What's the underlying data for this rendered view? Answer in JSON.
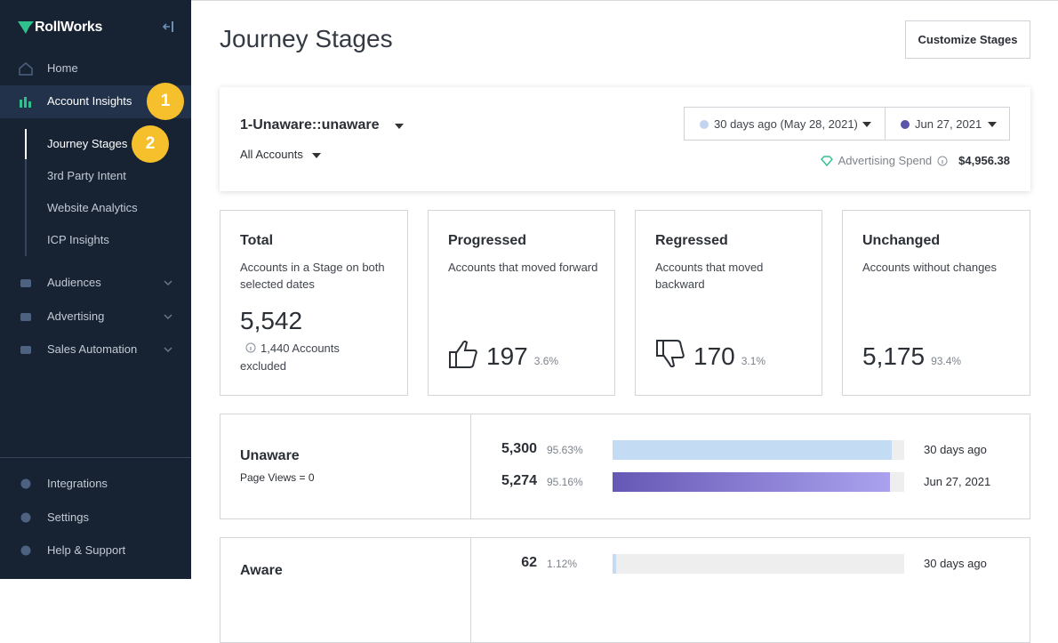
{
  "sidebar": {
    "brand": "RollWorks",
    "nav": [
      {
        "label": "Home"
      },
      {
        "label": "Account Insights",
        "badge": "1"
      }
    ],
    "sub_nav": [
      {
        "label": "Journey Stages",
        "badge": "2"
      },
      {
        "label": "3rd Party Intent"
      },
      {
        "label": "Website Analytics"
      },
      {
        "label": "ICP Insights"
      }
    ],
    "groups": [
      {
        "label": "Audiences"
      },
      {
        "label": "Advertising"
      },
      {
        "label": "Sales Automation"
      }
    ],
    "bottom": [
      {
        "label": "Integrations"
      },
      {
        "label": "Settings"
      },
      {
        "label": "Help & Support"
      }
    ]
  },
  "header": {
    "title": "Journey Stages",
    "button": "Customize Stages"
  },
  "filters": {
    "stage": "1-Unaware::unaware",
    "accounts": "All Accounts",
    "date_from": "30 days ago (May 28, 2021)",
    "date_to": "Jun 27, 2021",
    "spend_label": "Advertising Spend",
    "spend": "$4,956.38"
  },
  "cards": [
    {
      "title": "Total",
      "description": "Accounts in a Stage on both selected dates",
      "value": "5,542",
      "note": "1,440 Accounts excluded"
    },
    {
      "title": "Progressed",
      "description": "Accounts that moved forward",
      "value": "197",
      "percent": "3.6%"
    },
    {
      "title": "Regressed",
      "description": "Accounts that moved backward",
      "value": "170",
      "percent": "3.1%"
    },
    {
      "title": "Unchanged",
      "description": "Accounts without changes",
      "value": "5,175",
      "percent": "93.4%"
    }
  ],
  "stages": [
    {
      "name": "Unaware",
      "detail": "Page Views = 0",
      "rows": [
        {
          "count": "5,300",
          "pct": 95.63,
          "pct_label": "95.63%",
          "date": "30 days ago"
        },
        {
          "count": "5,274",
          "pct": 95.16,
          "pct_label": "95.16%",
          "date": "Jun 27, 2021"
        }
      ]
    },
    {
      "name": "Aware",
      "rows": [
        {
          "count": "62",
          "pct": 1.12,
          "pct_label": "1.12%",
          "date": "30 days ago"
        }
      ]
    }
  ]
}
